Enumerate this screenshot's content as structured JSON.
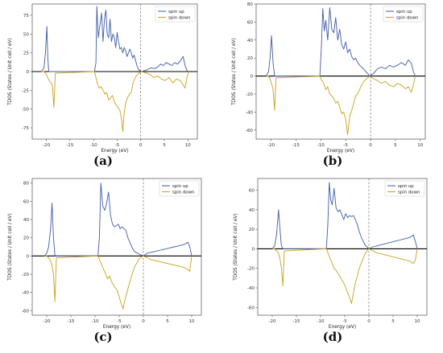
{
  "legend": {
    "up": "spin up",
    "down": "spin down"
  },
  "colors": {
    "up": "#3e5ba9",
    "down": "#c9a11b",
    "extra": "#6bbf3a",
    "zero": "#000000"
  },
  "chart_data": [
    {
      "type": "line",
      "label": "(a)",
      "xlabel": "Energy (eV)",
      "ylabel": "TDOS (States / Unit cell / eV)",
      "xlim": [
        -23,
        12
      ],
      "ylim": [
        -90,
        90
      ],
      "xticks": [
        -20,
        -15,
        -10,
        -5,
        0,
        5,
        10
      ],
      "yticks": [
        -75,
        -50,
        -25,
        0,
        25,
        50,
        75
      ],
      "fermi_level": 0,
      "legend_position": "top-right",
      "series": [
        {
          "name": "spin up",
          "x": [
            -21,
            -20.5,
            -20.2,
            -19.9,
            -19.7,
            -19.5,
            -9.8,
            -9.5,
            -9.3,
            -9.0,
            -8.7,
            -8.3,
            -8.0,
            -7.7,
            -7.4,
            -7.1,
            -6.8,
            -6.5,
            -6.2,
            -5.9,
            -5.6,
            -5.3,
            -5.0,
            -4.7,
            -4.4,
            -4.1,
            -3.8,
            -3.5,
            -3.2,
            -2.9,
            -2.6,
            -2.3,
            -2.0,
            -1.7,
            -1.4,
            -1.1,
            -0.8,
            -0.4,
            0.2,
            1.2,
            2.2,
            3.0,
            3.6,
            4.2,
            4.8,
            5.4,
            6.0,
            6.6,
            7.2,
            7.8,
            8.4,
            9.0,
            9.4,
            9.7,
            10.0
          ],
          "y": [
            0,
            5,
            25,
            60,
            20,
            0,
            0,
            12,
            87,
            45,
            60,
            78,
            40,
            68,
            82,
            50,
            45,
            70,
            40,
            50,
            45,
            32,
            52,
            40,
            30,
            32,
            25,
            32,
            28,
            20,
            25,
            30,
            25,
            18,
            22,
            15,
            8,
            2,
            0,
            2,
            5,
            4,
            6,
            10,
            8,
            12,
            10,
            8,
            12,
            10,
            14,
            20,
            8,
            3,
            0
          ]
        },
        {
          "name": "spin down",
          "x": [
            -21,
            -20.5,
            -20.2,
            -19.9,
            -19.7,
            -19.4,
            -19.0,
            -18.7,
            -18.4,
            -18.1,
            -9.8,
            -9.5,
            -9.2,
            -8.8,
            -8.4,
            -8.0,
            -7.6,
            -7.2,
            -6.8,
            -6.4,
            -6.0,
            -5.6,
            -5.2,
            -4.8,
            -4.4,
            -4.1,
            -3.8,
            -3.5,
            -3.2,
            -2.8,
            -2.4,
            -2.0,
            -1.6,
            -1.2,
            -0.8,
            -0.4,
            0.2,
            1.2,
            2.0,
            2.8,
            3.6,
            4.4,
            5.2,
            6.0,
            6.8,
            7.6,
            8.4,
            9.0,
            9.4,
            9.8,
            10.2
          ],
          "y": [
            0,
            0,
            -2,
            -5,
            -8,
            -12,
            -15,
            -20,
            -48,
            -2,
            0,
            -8,
            -16,
            -22,
            -20,
            -25,
            -30,
            -28,
            -38,
            -35,
            -32,
            -40,
            -45,
            -48,
            -52,
            -62,
            -80,
            -55,
            -42,
            -35,
            -30,
            -28,
            -15,
            -8,
            -5,
            -2,
            0,
            -2,
            -4,
            -8,
            -6,
            -10,
            -12,
            -8,
            -15,
            -10,
            -12,
            -18,
            -22,
            -8,
            0
          ]
        }
      ]
    },
    {
      "type": "line",
      "label": "(b)",
      "xlabel": "Energy (eV)",
      "ylabel": "TDOS (States / Unit cell / eV)",
      "xlim": [
        -23,
        11
      ],
      "ylim": [
        -70,
        80
      ],
      "xticks": [
        -20,
        -15,
        -10,
        -5,
        0,
        5,
        10
      ],
      "yticks": [
        -60,
        -40,
        -20,
        0,
        20,
        40,
        60,
        80
      ],
      "fermi_level": 0,
      "legend_position": "top-right",
      "series": [
        {
          "name": "spin up",
          "x": [
            -21,
            -20.5,
            -20.2,
            -19.9,
            -19.6,
            -19.3,
            -10.2,
            -9.9,
            -9.6,
            -9.3,
            -9.0,
            -8.6,
            -8.2,
            -7.8,
            -7.4,
            -7.0,
            -6.6,
            -6.2,
            -5.8,
            -5.4,
            -5.0,
            -4.6,
            -4.2,
            -3.8,
            -3.4,
            -3.0,
            -2.6,
            -2.2,
            -1.8,
            -1.4,
            -1.0,
            -0.6,
            -0.2,
            0.6,
            1.4,
            2.2,
            3.0,
            3.8,
            4.6,
            5.4,
            6.2,
            7.0,
            7.6,
            8.2,
            8.6,
            9.0
          ],
          "y": [
            0,
            5,
            20,
            45,
            15,
            0,
            0,
            30,
            75,
            50,
            62,
            40,
            76,
            52,
            48,
            65,
            40,
            52,
            35,
            30,
            38,
            26,
            30,
            22,
            18,
            20,
            15,
            12,
            10,
            8,
            5,
            3,
            0,
            3,
            8,
            10,
            8,
            12,
            10,
            12,
            15,
            12,
            18,
            14,
            5,
            0
          ]
        },
        {
          "name": "spin down",
          "x": [
            -21,
            -20.5,
            -20.2,
            -19.9,
            -19.6,
            -19.3,
            -19.0,
            -10.2,
            -9.8,
            -9.4,
            -9.0,
            -8.6,
            -8.2,
            -7.8,
            -7.4,
            -7.0,
            -6.6,
            -6.2,
            -5.8,
            -5.4,
            -5.0,
            -4.6,
            -4.2,
            -3.8,
            -3.4,
            -3.0,
            -2.6,
            -2.2,
            -1.8,
            -1.4,
            -1.0,
            -0.6,
            -0.2,
            0.6,
            1.4,
            2.2,
            3.0,
            3.8,
            4.6,
            5.4,
            6.2,
            7.0,
            7.6,
            8.2,
            8.6,
            9.0
          ],
          "y": [
            0,
            0,
            -3,
            -8,
            -15,
            -38,
            -2,
            0,
            -5,
            -8,
            -15,
            -12,
            -20,
            -22,
            -25,
            -30,
            -28,
            -35,
            -42,
            -40,
            -48,
            -65,
            -45,
            -38,
            -30,
            -22,
            -20,
            -15,
            -10,
            -6,
            -4,
            -2,
            0,
            -3,
            -5,
            -8,
            -6,
            -10,
            -12,
            -8,
            -10,
            -14,
            -12,
            -18,
            -10,
            0
          ]
        }
      ]
    },
    {
      "type": "line",
      "label": "(c)",
      "xlabel": "Energy (eV)",
      "ylabel": "TDOS (States / Unit cell / eV)",
      "xlim": [
        -23,
        12
      ],
      "ylim": [
        -65,
        85
      ],
      "xticks": [
        -20,
        -15,
        -10,
        -5,
        0,
        5,
        10
      ],
      "yticks": [
        -60,
        -40,
        -20,
        0,
        20,
        40,
        60,
        80
      ],
      "fermi_level": 0,
      "legend_position": "top-right",
      "series": [
        {
          "name": "spin up",
          "x": [
            -20.5,
            -20.0,
            -19.6,
            -19.2,
            -18.9,
            -18.6,
            -18.3,
            -9.4,
            -9.1,
            -8.8,
            -8.4,
            -8.0,
            -7.6,
            -7.2,
            -6.8,
            -6.4,
            -6.0,
            -5.6,
            -5.2,
            -4.8,
            -4.4,
            -4.0,
            -3.6,
            -3.2,
            -2.8,
            -2.4,
            -2.0,
            -1.6,
            -1.2,
            -0.8,
            -0.4,
            0.0,
            0.8,
            1.6,
            2.4,
            3.2,
            4.0,
            4.8,
            5.6,
            6.4,
            7.2,
            8.0,
            8.6,
            9.2,
            9.6,
            10.0
          ],
          "y": [
            0,
            3,
            10,
            30,
            58,
            20,
            0,
            0,
            20,
            80,
            55,
            50,
            58,
            70,
            45,
            35,
            32,
            33,
            35,
            30,
            32,
            30,
            28,
            20,
            15,
            10,
            6,
            4,
            3,
            2,
            1,
            0,
            3,
            4,
            5,
            6,
            7,
            8,
            9,
            10,
            11,
            12,
            13,
            15,
            10,
            0
          ]
        },
        {
          "name": "spin down",
          "x": [
            -20.5,
            -20.0,
            -19.6,
            -19.2,
            -18.9,
            -18.6,
            -18.3,
            -18.0,
            -9.4,
            -9.0,
            -8.6,
            -8.2,
            -7.8,
            -7.4,
            -7.0,
            -6.6,
            -6.2,
            -5.8,
            -5.4,
            -5.0,
            -4.6,
            -4.2,
            -3.8,
            -3.4,
            -3.0,
            -2.6,
            -2.2,
            -1.8,
            -1.4,
            -1.0,
            -0.6,
            0.0,
            0.8,
            1.6,
            2.4,
            3.2,
            4.0,
            4.8,
            5.6,
            6.4,
            7.2,
            8.0,
            8.6,
            9.2,
            9.6,
            10.0
          ],
          "y": [
            0,
            0,
            -2,
            -5,
            -10,
            -20,
            -50,
            -2,
            0,
            -5,
            -10,
            -15,
            -20,
            -25,
            -22,
            -28,
            -32,
            -35,
            -38,
            -45,
            -52,
            -58,
            -48,
            -40,
            -32,
            -25,
            -18,
            -12,
            -8,
            -4,
            -2,
            0,
            -2,
            -4,
            -5,
            -6,
            -7,
            -8,
            -9,
            -10,
            -11,
            -12,
            -13,
            -15,
            -17,
            0
          ]
        }
      ]
    },
    {
      "type": "line",
      "label": "(d)",
      "xlabel": "Energy (eV)",
      "ylabel": "TDOS (States / Unit cell / eV)",
      "xlim": [
        -23,
        12
      ],
      "ylim": [
        -68,
        72
      ],
      "xticks": [
        -20,
        -15,
        -10,
        -5,
        0,
        5,
        10
      ],
      "yticks": [
        -60,
        -40,
        -20,
        0,
        20,
        40,
        60
      ],
      "fermi_level": 0,
      "legend_position": "top-right",
      "series": [
        {
          "name": "spin up",
          "x": [
            -20.0,
            -19.5,
            -19.1,
            -18.7,
            -18.4,
            -18.1,
            -17.8,
            -8.8,
            -8.5,
            -8.2,
            -7.9,
            -7.6,
            -7.2,
            -6.8,
            -6.4,
            -6.0,
            -5.6,
            -5.2,
            -4.8,
            -4.4,
            -4.0,
            -3.6,
            -3.2,
            -2.8,
            -2.4,
            -2.0,
            -1.6,
            -1.2,
            -0.8,
            -0.4,
            0.0,
            0.8,
            1.6,
            2.4,
            3.2,
            4.0,
            4.8,
            5.6,
            6.4,
            7.2,
            8.0,
            8.6,
            9.2,
            9.6,
            10.0
          ],
          "y": [
            0,
            3,
            15,
            40,
            20,
            3,
            0,
            0,
            25,
            68,
            50,
            45,
            62,
            42,
            38,
            40,
            35,
            30,
            36,
            32,
            34,
            33,
            34,
            30,
            25,
            18,
            12,
            8,
            4,
            2,
            0,
            2,
            3,
            4,
            5,
            6,
            7,
            8,
            9,
            10,
            11,
            12,
            14,
            8,
            0
          ]
        },
        {
          "name": "spin down",
          "x": [
            -20.0,
            -19.5,
            -19.1,
            -18.7,
            -18.4,
            -18.1,
            -17.8,
            -17.5,
            -8.8,
            -8.4,
            -8.0,
            -7.6,
            -7.2,
            -6.8,
            -6.4,
            -6.0,
            -5.6,
            -5.2,
            -4.8,
            -4.4,
            -4.0,
            -3.6,
            -3.2,
            -2.8,
            -2.4,
            -2.0,
            -1.6,
            -1.2,
            -0.8,
            -0.4,
            0.0,
            0.8,
            1.6,
            2.4,
            3.2,
            4.0,
            4.8,
            5.6,
            6.4,
            7.2,
            8.0,
            8.6,
            9.2,
            9.6,
            10.0
          ],
          "y": [
            0,
            0,
            -2,
            -5,
            -10,
            -20,
            -38,
            -2,
            0,
            -5,
            -10,
            -15,
            -20,
            -22,
            -25,
            -28,
            -32,
            -35,
            -40,
            -45,
            -50,
            -56,
            -45,
            -35,
            -28,
            -20,
            -15,
            -10,
            -5,
            -2,
            0,
            -2,
            -4,
            -5,
            -6,
            -7,
            -8,
            -9,
            -10,
            -11,
            -12,
            -13,
            -15,
            -12,
            0
          ]
        }
      ]
    }
  ]
}
